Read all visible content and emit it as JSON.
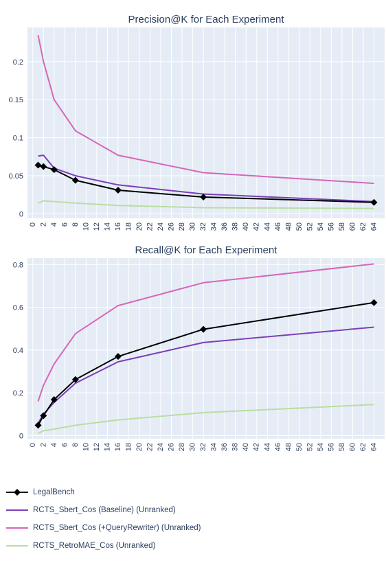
{
  "colors": {
    "plot_bg": "#e5ecf6",
    "grid": "#ffffff",
    "text": "#2a3f5f"
  },
  "chart_data": [
    {
      "type": "line",
      "title": "Precision@K for Each Experiment",
      "xlabel": "",
      "ylabel": "",
      "xlim": [
        -1,
        66
      ],
      "ylim": [
        -0.006,
        0.245
      ],
      "xticks": [
        0,
        2,
        4,
        6,
        8,
        10,
        12,
        14,
        16,
        18,
        20,
        22,
        24,
        26,
        28,
        30,
        32,
        34,
        36,
        38,
        40,
        42,
        44,
        46,
        48,
        50,
        52,
        54,
        56,
        58,
        60,
        62,
        64
      ],
      "yticks": [
        0,
        0.05,
        0.1,
        0.15,
        0.2
      ],
      "ytick_labels": [
        "0",
        "0.05",
        "0.1",
        "0.15",
        "0.2"
      ],
      "grid": true,
      "series": [
        {
          "name": "LegalBench",
          "color": "#000000",
          "markers": true,
          "x": [
            1,
            2,
            4,
            8,
            16,
            32,
            64
          ],
          "y": [
            0.064,
            0.062,
            0.058,
            0.044,
            0.031,
            0.022,
            0.015
          ]
        },
        {
          "name": "RCTS_Sbert_Cos (Baseline) (Unranked)",
          "color": "#7b3fb7",
          "markers": false,
          "x": [
            1,
            2,
            4,
            8,
            16,
            32,
            64
          ],
          "y": [
            0.076,
            0.077,
            0.06,
            0.05,
            0.038,
            0.026,
            0.016
          ]
        },
        {
          "name": "RCTS_Sbert_Cos (+QueryRewriter) (Unranked)",
          "color": "#d766b8",
          "markers": false,
          "x": [
            1,
            2,
            4,
            8,
            16,
            32,
            64
          ],
          "y": [
            0.235,
            0.2,
            0.15,
            0.109,
            0.077,
            0.054,
            0.04
          ]
        },
        {
          "name": "RCTS_RetroMAE_Cos (Unranked)",
          "color": "#b9dea0",
          "markers": false,
          "x": [
            1,
            2,
            4,
            8,
            16,
            32,
            64
          ],
          "y": [
            0.014,
            0.017,
            0.016,
            0.014,
            0.011,
            0.008,
            0.007
          ]
        }
      ]
    },
    {
      "type": "line",
      "title": "Recall@K for Each Experiment",
      "xlabel": "",
      "ylabel": "",
      "xlim": [
        -1,
        66
      ],
      "ylim": [
        -0.015,
        0.83
      ],
      "xticks": [
        0,
        2,
        4,
        6,
        8,
        10,
        12,
        14,
        16,
        18,
        20,
        22,
        24,
        26,
        28,
        30,
        32,
        34,
        36,
        38,
        40,
        42,
        44,
        46,
        48,
        50,
        52,
        54,
        56,
        58,
        60,
        62,
        64
      ],
      "yticks": [
        0,
        0.2,
        0.4,
        0.6,
        0.8
      ],
      "ytick_labels": [
        "0",
        "0.2",
        "0.4",
        "0.6",
        "0.8"
      ],
      "grid": true,
      "series": [
        {
          "name": "LegalBench",
          "color": "#000000",
          "markers": true,
          "x": [
            1,
            2,
            4,
            8,
            16,
            32,
            64
          ],
          "y": [
            0.048,
            0.093,
            0.168,
            0.262,
            0.37,
            0.497,
            0.622
          ]
        },
        {
          "name": "RCTS_Sbert_Cos (Baseline) (Unranked)",
          "color": "#7b3fb7",
          "markers": false,
          "x": [
            1,
            2,
            4,
            8,
            16,
            32,
            64
          ],
          "y": [
            0.058,
            0.1,
            0.155,
            0.245,
            0.345,
            0.435,
            0.507
          ]
        },
        {
          "name": "RCTS_Sbert_Cos (+QueryRewriter) (Unranked)",
          "color": "#d766b8",
          "markers": false,
          "x": [
            1,
            2,
            4,
            8,
            16,
            32,
            64
          ],
          "y": [
            0.16,
            0.235,
            0.335,
            0.477,
            0.608,
            0.715,
            0.803
          ]
        },
        {
          "name": "RCTS_RetroMAE_Cos (Unranked)",
          "color": "#b9dea0",
          "markers": false,
          "x": [
            1,
            2,
            4,
            8,
            16,
            32,
            64
          ],
          "y": [
            0.01,
            0.022,
            0.03,
            0.048,
            0.073,
            0.107,
            0.145
          ]
        }
      ]
    }
  ],
  "legend": {
    "placement": "bottom-left",
    "items": [
      {
        "label": "LegalBench",
        "color": "#000000",
        "marker": true
      },
      {
        "label": "RCTS_Sbert_Cos (Baseline) (Unranked)",
        "color": "#7b3fb7",
        "marker": false
      },
      {
        "label": "RCTS_Sbert_Cos (+QueryRewriter) (Unranked)",
        "color": "#d766b8",
        "marker": false
      },
      {
        "label": "RCTS_RetroMAE_Cos (Unranked)",
        "color": "#b9dea0",
        "marker": false
      }
    ]
  }
}
